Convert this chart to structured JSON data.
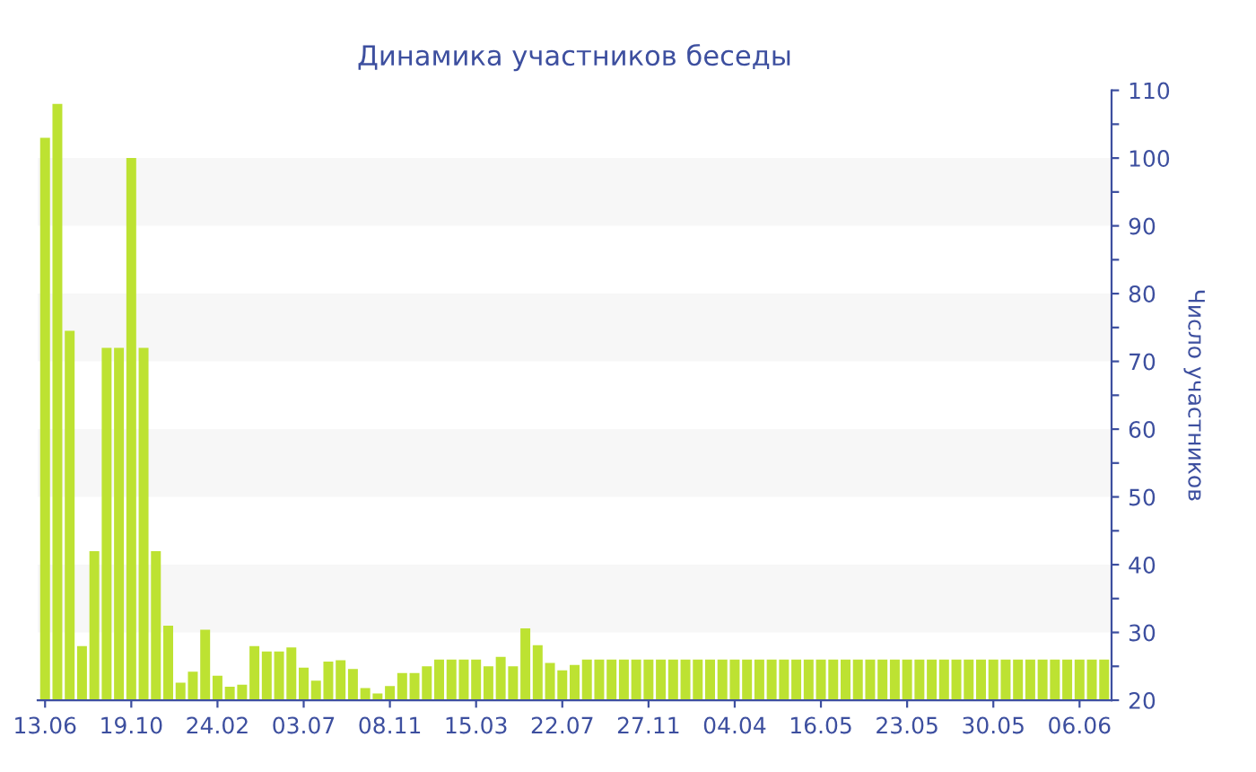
{
  "chart_data": {
    "type": "bar",
    "title": "Динамика участников беседы",
    "ylabel": "Число участников",
    "categories": [
      "13.06",
      null,
      null,
      null,
      null,
      null,
      null,
      "19.10",
      null,
      null,
      null,
      null,
      null,
      null,
      "24.02",
      null,
      null,
      null,
      null,
      null,
      null,
      "03.07",
      null,
      null,
      null,
      null,
      null,
      null,
      "08.11",
      null,
      null,
      null,
      null,
      null,
      null,
      "15.03",
      null,
      null,
      null,
      null,
      null,
      null,
      "22.07",
      null,
      null,
      null,
      null,
      null,
      null,
      "27.11",
      null,
      null,
      null,
      null,
      null,
      null,
      "04.04",
      null,
      null,
      null,
      null,
      null,
      null,
      "16.05",
      null,
      null,
      null,
      null,
      null,
      null,
      "23.05",
      null,
      null,
      null,
      null,
      null,
      null,
      "30.05",
      null,
      null,
      null,
      null,
      null,
      null,
      "06.06",
      null,
      null
    ],
    "values": [
      103,
      108,
      74.5,
      28,
      42,
      72,
      72,
      100,
      72,
      42,
      31,
      22.6,
      24.2,
      30.4,
      23.6,
      22,
      22.3,
      28,
      27.2,
      27.2,
      27.8,
      24.8,
      22.9,
      25.7,
      25.9,
      24.6,
      21.8,
      21,
      22.1,
      24,
      24,
      25,
      26,
      26,
      26,
      26,
      25,
      26.4,
      25,
      30.6,
      28.1,
      25.5,
      24.4,
      25.2,
      26,
      26,
      26,
      26,
      26,
      26,
      26,
      26,
      26,
      26,
      26,
      26,
      26,
      26,
      26,
      26,
      26,
      26,
      26,
      26,
      26,
      26,
      26,
      26,
      26,
      26,
      26,
      26,
      26,
      26,
      26,
      26,
      26,
      26,
      26,
      26,
      26,
      26,
      26,
      26,
      26,
      26,
      26
    ],
    "color": "#bde232",
    "ylim": [
      20,
      110
    ],
    "yticks": [
      20,
      {
        "value": 25,
        "label": null
      },
      30,
      {
        "value": 35,
        "label": null
      },
      40,
      {
        "value": 45,
        "label": null
      },
      50,
      {
        "value": 55,
        "label": null
      },
      60,
      {
        "value": 65,
        "label": null
      },
      70,
      {
        "value": 75,
        "label": null
      },
      80,
      {
        "value": 85,
        "label": null
      },
      90,
      {
        "value": 95,
        "label": null
      },
      100,
      {
        "value": 105,
        "label": null
      },
      110
    ],
    "grid": false,
    "bands": [
      {
        "axis": "y",
        "from": 30,
        "to": 40,
        "color": "#f7f7f7"
      },
      {
        "axis": "y",
        "from": 50,
        "to": 60,
        "color": "#f7f7f7"
      },
      {
        "axis": "y",
        "from": 70,
        "to": 80,
        "color": "#f7f7f7"
      },
      {
        "axis": "y",
        "from": 90,
        "to": 100,
        "color": "#f7f7f7"
      }
    ]
  }
}
